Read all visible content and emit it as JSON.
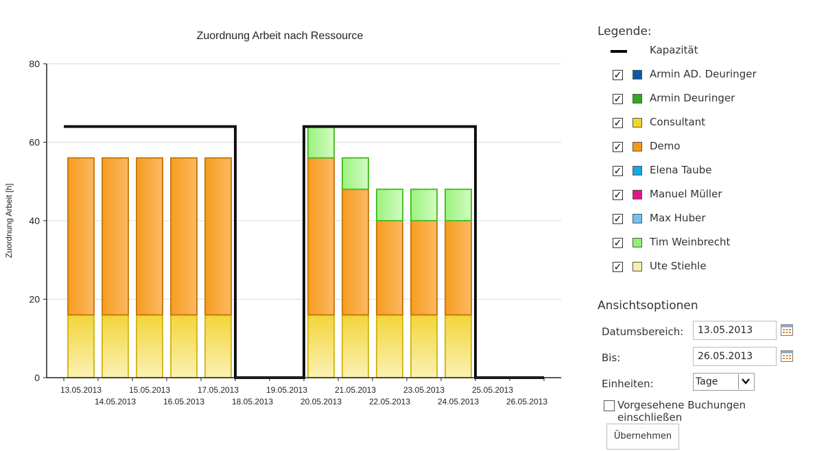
{
  "chart_data": {
    "type": "bar",
    "title": "Zuordnung Arbeit nach Ressource",
    "ylabel": "Zuordnung Arbeit [h]",
    "xlabel": "",
    "ylim": [
      0,
      80
    ],
    "yticks": [
      0,
      20,
      40,
      60,
      80
    ],
    "grid": true,
    "stacked": true,
    "categories": [
      "13.05.2013",
      "14.05.2013",
      "15.05.2013",
      "16.05.2013",
      "17.05.2013",
      "18.05.2013",
      "19.05.2013",
      "20.05.2013",
      "21.05.2013",
      "22.05.2013",
      "23.05.2013",
      "24.05.2013",
      "25.05.2013",
      "26.05.2013"
    ],
    "series": [
      {
        "name": "Consultant",
        "color": "#F2D22E",
        "values": [
          16,
          16,
          16,
          16,
          16,
          0,
          0,
          16,
          16,
          16,
          16,
          16,
          0,
          0
        ]
      },
      {
        "name": "Demo",
        "color": "#F4A21E",
        "values": [
          40,
          40,
          40,
          40,
          40,
          0,
          0,
          40,
          32,
          24,
          24,
          24,
          0,
          0
        ]
      },
      {
        "name": "Tim Weinbrecht",
        "color": "#9CF07E",
        "values": [
          0,
          0,
          0,
          0,
          0,
          0,
          0,
          8,
          8,
          8,
          8,
          8,
          0,
          0
        ]
      }
    ],
    "capacity": {
      "name": "Kapazität",
      "values": [
        64,
        64,
        64,
        64,
        64,
        0,
        0,
        64,
        64,
        64,
        64,
        64,
        0,
        0
      ]
    }
  },
  "legend": {
    "title": "Legende:",
    "items": [
      {
        "label": "Kapazität",
        "kind": "line",
        "color": "#000000"
      },
      {
        "label": "Armin AD. Deuringer",
        "kind": "box",
        "checked": true,
        "color": "#0A5AA8"
      },
      {
        "label": "Armin Deuringer",
        "kind": "box",
        "checked": true,
        "color": "#2FAA1C"
      },
      {
        "label": "Consultant",
        "kind": "box",
        "checked": true,
        "color": "#F5D628"
      },
      {
        "label": "Demo",
        "kind": "box",
        "checked": true,
        "color": "#F39A12"
      },
      {
        "label": "Elena Taube",
        "kind": "box",
        "checked": true,
        "color": "#16A8E6"
      },
      {
        "label": "Manuel Müller",
        "kind": "box",
        "checked": true,
        "color": "#E0158A"
      },
      {
        "label": "Max Huber",
        "kind": "box",
        "checked": true,
        "color": "#6EC3F2"
      },
      {
        "label": "Tim Weinbrecht",
        "kind": "box",
        "checked": true,
        "color": "#8FF074"
      },
      {
        "label": "Ute Stiehle",
        "kind": "box",
        "checked": true,
        "color": "#FCEDAE"
      }
    ]
  },
  "options": {
    "title": "Ansichtsoptionen",
    "date_from_label": "Datumsbereich:",
    "date_from_value": "13.05.2013",
    "date_to_label": "Bis:",
    "date_to_value": "26.05.2013",
    "units_label": "Einheiten:",
    "units_value": "Tage",
    "include_planned_label": "Vorgesehene Buchungen einschließen",
    "include_planned_checked": false,
    "apply_label": "Übernehmen"
  }
}
